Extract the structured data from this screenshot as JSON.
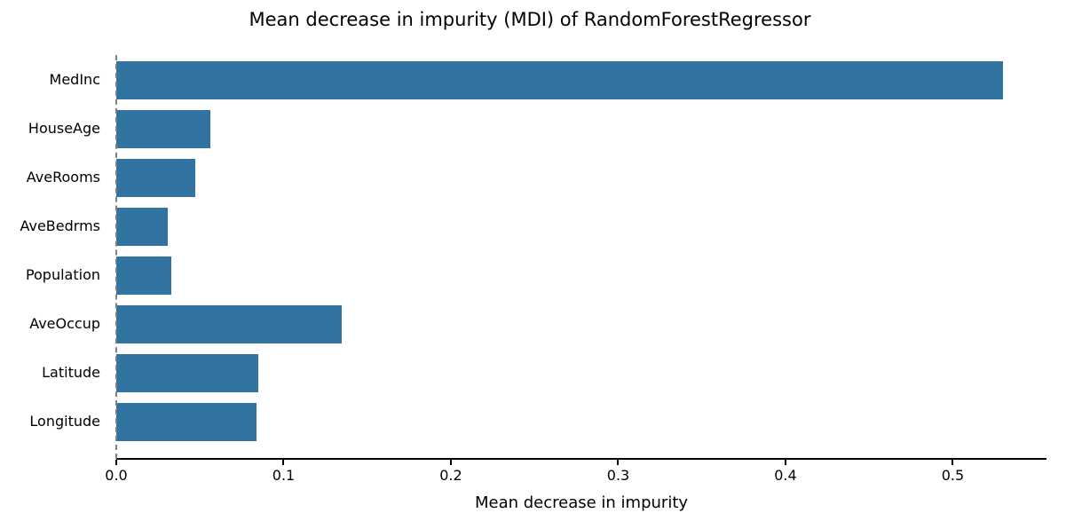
{
  "chart_data": {
    "type": "bar",
    "orientation": "horizontal",
    "title": "Mean decrease in impurity (MDI) of RandomForestRegressor",
    "xlabel": "Mean decrease in impurity",
    "ylabel": "",
    "categories": [
      "MedInc",
      "HouseAge",
      "AveRooms",
      "AveBedrms",
      "Population",
      "AveOccup",
      "Latitude",
      "Longitude"
    ],
    "values": [
      0.53,
      0.056,
      0.047,
      0.031,
      0.033,
      0.135,
      0.085,
      0.084
    ],
    "xlim": [
      0,
      0.556
    ],
    "xticks": [
      "0.0",
      "0.1",
      "0.2",
      "0.3",
      "0.4",
      "0.5"
    ],
    "xtick_values": [
      0.0,
      0.1,
      0.2,
      0.3,
      0.4,
      0.5
    ],
    "bar_color": "#3274a1",
    "axis_color": "#000000",
    "left_spine_style": "dashed-gray",
    "grid": false,
    "legend_position": "none"
  }
}
